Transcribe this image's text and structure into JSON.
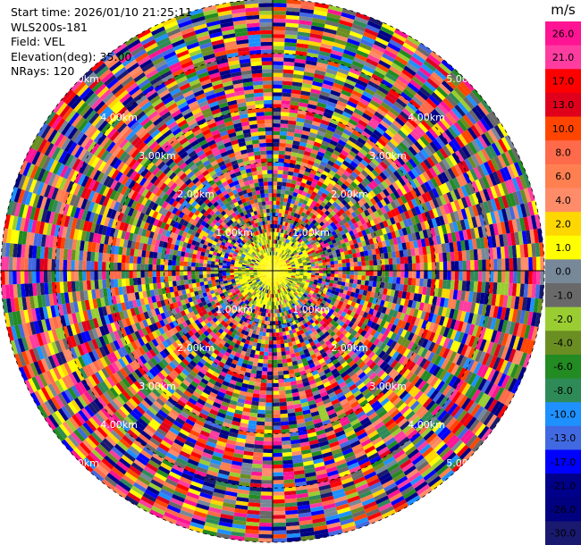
{
  "header": {
    "start_time": "Start time: 2026/01/10 21:25:11",
    "instrument": "WLS200s-181",
    "field": "Field: VEL",
    "elevation": "Elevation(deg): 35.00",
    "nrays": "NRays: 120"
  },
  "chart_data": {
    "type": "heatmap",
    "projection": "polar-ppi",
    "field": "VEL",
    "units": "m/s",
    "n_rays": 120,
    "max_range_km": 5.0,
    "range_rings_km": [
      1.0,
      2.0,
      3.0,
      4.0,
      5.0
    ],
    "range_ring_labels": [
      "1.00km",
      "2.00km",
      "3.00km",
      "4.00km",
      "5.00km"
    ],
    "colorbar": {
      "title": "m/s",
      "tick_labels": [
        "26.0",
        "21.0",
        "17.0",
        "13.0",
        "10.0",
        "8.0",
        "6.0",
        "4.0",
        "2.0",
        "1.0",
        "0.0",
        "-1.0",
        "-2.0",
        "-4.0",
        "-6.0",
        "-8.0",
        "-10.0",
        "-13.0",
        "-17.0",
        "-21.0",
        "-26.0",
        "-30.0"
      ],
      "colors": [
        "#ff1493",
        "#ff3ca0",
        "#ff0000",
        "#e0001c",
        "#ff4500",
        "#ff6a4a",
        "#ff7f50",
        "#ff8c69",
        "#ffd700",
        "#ffff00",
        "#778899",
        "#696969",
        "#9acd32",
        "#6b8e23",
        "#228b22",
        "#2e8b57",
        "#1e90ff",
        "#4169e1",
        "#0000ff",
        "#00008b",
        "#000080",
        "#191970"
      ]
    }
  }
}
